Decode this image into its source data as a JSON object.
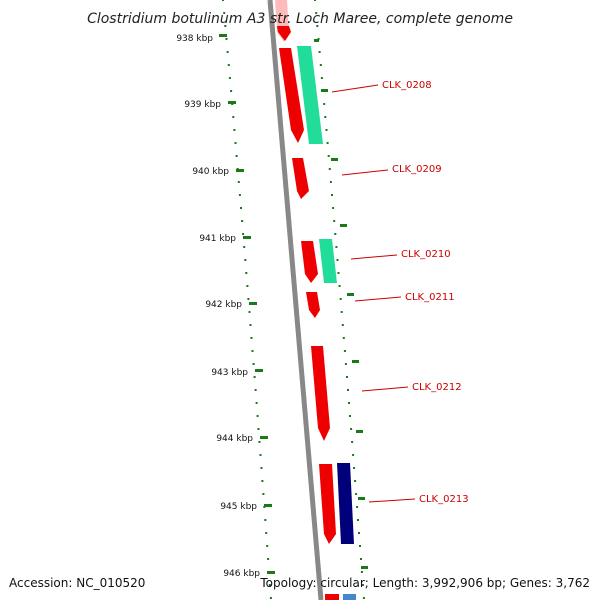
{
  "title": "Clostridium botulinum A3 str. Loch Maree, complete genome",
  "footer": {
    "accession": "Accession: NC_010520",
    "topology": "Topology: circular; Length: 3,992,906 bp; Genes: 3,762"
  },
  "ruler": {
    "ticks": [
      "938 kbp",
      "939 kbp",
      "940 kbp",
      "941 kbp",
      "942 kbp",
      "943 kbp",
      "944 kbp",
      "945 kbp",
      "946 kbp"
    ]
  },
  "genes": [
    {
      "label": "CLK_0208"
    },
    {
      "label": "CLK_0209"
    },
    {
      "label": "CLK_0210"
    },
    {
      "label": "CLK_0211"
    },
    {
      "label": "CLK_0212"
    },
    {
      "label": "CLK_0213"
    }
  ],
  "colors": {
    "cds": "#ee0000",
    "cds_faded": "#ffbbbb",
    "feature_green": "#22dd99",
    "feature_navy": "#00007a",
    "feature_blue": "#4488cc",
    "backbone": "#888888",
    "tick": "#1a7a1a",
    "label_line": "#cc0000"
  }
}
